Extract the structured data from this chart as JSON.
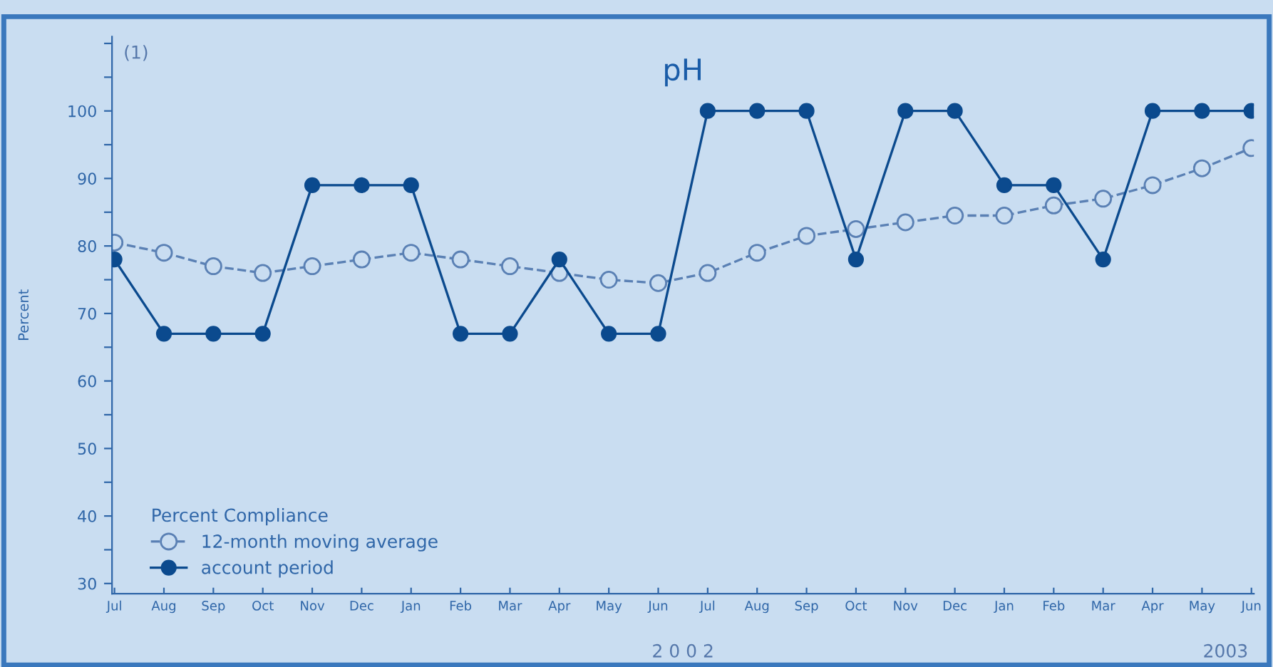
{
  "chart_data": {
    "type": "line",
    "title": "pH",
    "ylabel": "Percent",
    "legend_title": "Percent Compliance",
    "categories": [
      "Jul",
      "Aug",
      "Sep",
      "Oct",
      "Nov",
      "Dec",
      "Jan",
      "Feb",
      "Mar",
      "Apr",
      "May",
      "Jun",
      "Jul",
      "Aug",
      "Sep",
      "Oct",
      "Nov",
      "Dec",
      "Jan",
      "Feb",
      "Mar",
      "Apr",
      "May",
      "Jun"
    ],
    "series": [
      {
        "name": "12-month moving average",
        "color": "#5a80b4",
        "line_style": "dashed",
        "marker": "circle",
        "values": [
          80.5,
          79,
          77,
          76,
          77,
          78,
          79,
          78,
          77,
          76,
          75,
          74.5,
          76,
          79,
          81.5,
          82.5,
          83.5,
          84.5,
          84.5,
          86,
          87,
          89,
          91.5,
          94.5
        ]
      },
      {
        "name": "account period",
        "color": "#0b4a8e",
        "line_style": "solid",
        "marker": "circle",
        "values": [
          78,
          67,
          67,
          67,
          89,
          89,
          89,
          67,
          67,
          78,
          67,
          67,
          100,
          100,
          100,
          78,
          100,
          100,
          89,
          89,
          78,
          100,
          100,
          100
        ]
      }
    ],
    "ylim": [
      28.5,
      111
    ],
    "yticks": [
      30,
      {
        "value": 35,
        "label": null
      },
      40,
      {
        "value": 45,
        "label": null
      },
      50,
      {
        "value": 55,
        "label": null
      },
      60,
      {
        "value": 65,
        "label": null
      },
      70,
      {
        "value": 75,
        "label": null
      },
      80,
      {
        "value": 85,
        "label": null
      },
      90,
      {
        "value": 95,
        "label": null
      },
      100,
      {
        "value": 105,
        "label": null
      },
      {
        "value": 110,
        "label": null
      }
    ],
    "grid": false,
    "legend": "bottom left",
    "annotations": [
      "(1)",
      "2 0 0 2",
      "2003"
    ]
  }
}
